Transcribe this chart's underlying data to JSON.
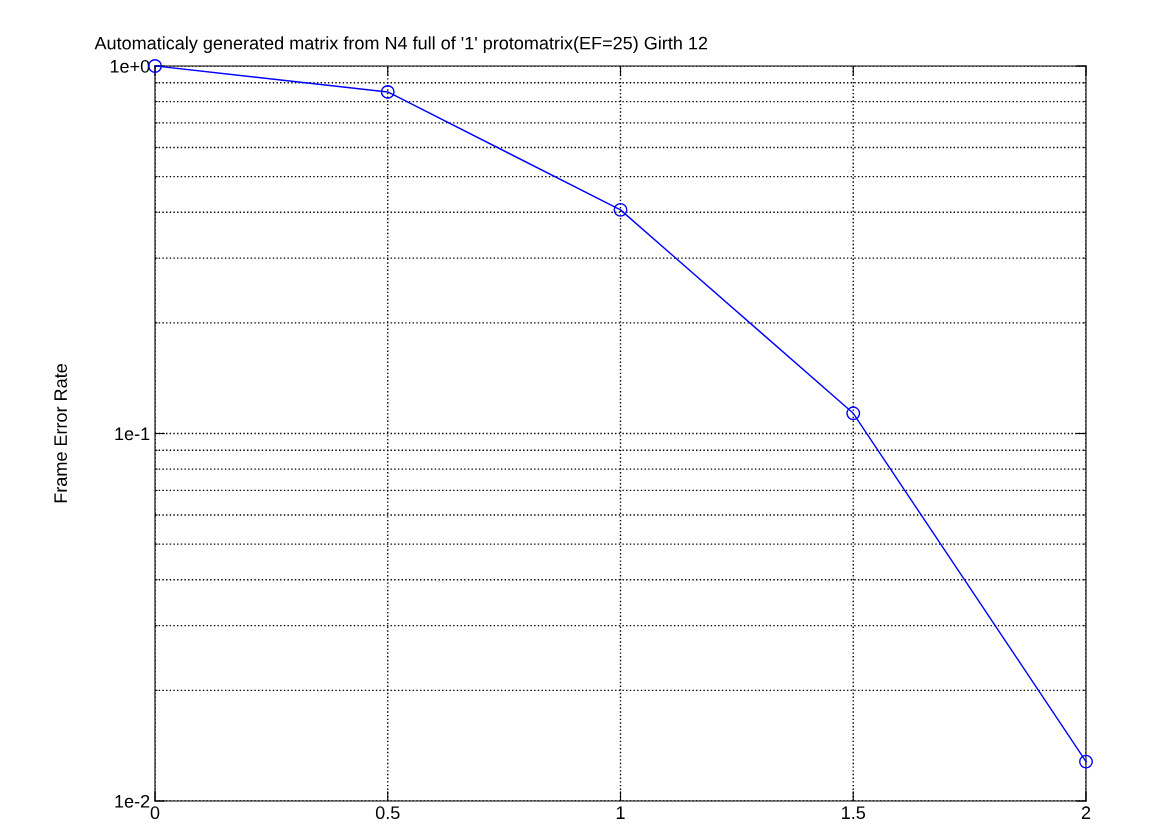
{
  "chart_data": {
    "type": "line",
    "title": "Automaticaly generated matrix from N4 full of '1' protomatrix(EF=25) Girth 12",
    "ylabel": "Frame Error Rate",
    "x": [
      0,
      0.5,
      1,
      1.5,
      2
    ],
    "series": [
      {
        "color": "#0000ff",
        "values": [
          1.0,
          0.85,
          0.406,
          0.1135,
          0.0128
        ]
      }
    ],
    "log": "y",
    "xlim": [
      0,
      2
    ],
    "ylim": [
      0.01,
      1
    ],
    "xticks": [
      0,
      0.5,
      1,
      1.5,
      2
    ],
    "yticks": [
      {
        "value": 0.01,
        "label": "1e-2"
      },
      {
        "value": 0.1,
        "label": "1e-1"
      },
      {
        "value": 1,
        "label": "1e+0"
      }
    ],
    "grid": true,
    "marker": "circle",
    "line_style": "solid",
    "legend": false
  }
}
